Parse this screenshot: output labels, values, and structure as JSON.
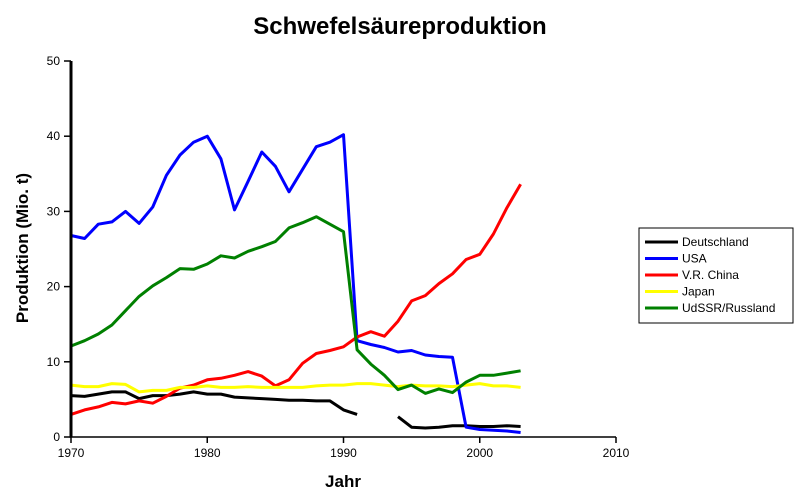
{
  "chart_data": {
    "type": "line",
    "title": "Schwefelsäureproduktion",
    "xlabel": "Jahr",
    "ylabel": "Produktion (Mio. t)",
    "xlim": [
      1970,
      2010
    ],
    "ylim": [
      0,
      50
    ],
    "xticks": [
      1970,
      1980,
      1990,
      2000,
      2010
    ],
    "yticks": [
      0,
      10,
      20,
      30,
      40,
      50
    ],
    "grid": false,
    "legend_position": "right",
    "series": [
      {
        "name": "Deutschland",
        "color": "#000000",
        "points": [
          [
            1970,
            5.5
          ],
          [
            1971,
            5.4
          ],
          [
            1972,
            5.7
          ],
          [
            1973,
            6.0
          ],
          [
            1974,
            6.0
          ],
          [
            1975,
            5.1
          ],
          [
            1976,
            5.5
          ],
          [
            1977,
            5.5
          ],
          [
            1978,
            5.7
          ],
          [
            1979,
            6.0
          ],
          [
            1980,
            5.7
          ],
          [
            1981,
            5.7
          ],
          [
            1982,
            5.3
          ],
          [
            1983,
            5.2
          ],
          [
            1984,
            5.1
          ],
          [
            1985,
            5.0
          ],
          [
            1986,
            4.9
          ],
          [
            1987,
            4.9
          ],
          [
            1988,
            4.8
          ],
          [
            1989,
            4.8
          ],
          [
            1990,
            3.6
          ],
          [
            1991,
            3.0
          ],
          [
            1994,
            2.7
          ],
          [
            1995,
            1.3
          ],
          [
            1996,
            1.2
          ],
          [
            1997,
            1.3
          ],
          [
            1998,
            1.5
          ],
          [
            1999,
            1.5
          ],
          [
            2000,
            1.4
          ],
          [
            2001,
            1.4
          ],
          [
            2002,
            1.5
          ],
          [
            2003,
            1.4
          ]
        ]
      },
      {
        "name": "USA",
        "color": "#0000ff",
        "points": [
          [
            1970,
            26.8
          ],
          [
            1971,
            26.4
          ],
          [
            1972,
            28.3
          ],
          [
            1973,
            28.6
          ],
          [
            1974,
            30.0
          ],
          [
            1975,
            28.4
          ],
          [
            1976,
            30.6
          ],
          [
            1977,
            34.8
          ],
          [
            1978,
            37.5
          ],
          [
            1979,
            39.2
          ],
          [
            1980,
            40.0
          ],
          [
            1981,
            37.0
          ],
          [
            1982,
            30.2
          ],
          [
            1983,
            34.0
          ],
          [
            1984,
            37.9
          ],
          [
            1985,
            36.0
          ],
          [
            1986,
            32.6
          ],
          [
            1987,
            35.6
          ],
          [
            1988,
            38.6
          ],
          [
            1989,
            39.2
          ],
          [
            1990,
            40.2
          ],
          [
            1991,
            12.8
          ],
          [
            1992,
            12.3
          ],
          [
            1993,
            11.9
          ],
          [
            1994,
            11.3
          ],
          [
            1995,
            11.5
          ],
          [
            1996,
            10.9
          ],
          [
            1997,
            10.7
          ],
          [
            1998,
            10.6
          ],
          [
            1999,
            1.3
          ],
          [
            2000,
            1.0
          ],
          [
            2001,
            0.9
          ],
          [
            2002,
            0.8
          ],
          [
            2003,
            0.6
          ]
        ]
      },
      {
        "name": "V.R. China",
        "color": "#ff0000",
        "points": [
          [
            1970,
            3.0
          ],
          [
            1971,
            3.6
          ],
          [
            1972,
            4.0
          ],
          [
            1973,
            4.6
          ],
          [
            1974,
            4.4
          ],
          [
            1975,
            4.8
          ],
          [
            1976,
            4.5
          ],
          [
            1977,
            5.4
          ],
          [
            1978,
            6.5
          ],
          [
            1979,
            6.9
          ],
          [
            1980,
            7.6
          ],
          [
            1981,
            7.8
          ],
          [
            1982,
            8.2
          ],
          [
            1983,
            8.7
          ],
          [
            1984,
            8.1
          ],
          [
            1985,
            6.8
          ],
          [
            1986,
            7.6
          ],
          [
            1987,
            9.8
          ],
          [
            1988,
            11.1
          ],
          [
            1989,
            11.5
          ],
          [
            1990,
            12.0
          ],
          [
            1991,
            13.3
          ],
          [
            1992,
            14.0
          ],
          [
            1993,
            13.4
          ],
          [
            1994,
            15.4
          ],
          [
            1995,
            18.1
          ],
          [
            1996,
            18.8
          ],
          [
            1997,
            20.4
          ],
          [
            1998,
            21.7
          ],
          [
            1999,
            23.6
          ],
          [
            2000,
            24.3
          ],
          [
            2001,
            27.0
          ],
          [
            2002,
            30.5
          ],
          [
            2003,
            33.6
          ]
        ]
      },
      {
        "name": "Japan",
        "color": "#ffff00",
        "points": [
          [
            1970,
            6.9
          ],
          [
            1971,
            6.7
          ],
          [
            1972,
            6.7
          ],
          [
            1973,
            7.1
          ],
          [
            1974,
            7.0
          ],
          [
            1975,
            6.0
          ],
          [
            1976,
            6.2
          ],
          [
            1977,
            6.2
          ],
          [
            1978,
            6.6
          ],
          [
            1979,
            6.6
          ],
          [
            1980,
            6.8
          ],
          [
            1981,
            6.6
          ],
          [
            1982,
            6.6
          ],
          [
            1983,
            6.7
          ],
          [
            1984,
            6.6
          ],
          [
            1985,
            6.6
          ],
          [
            1986,
            6.6
          ],
          [
            1987,
            6.6
          ],
          [
            1988,
            6.8
          ],
          [
            1989,
            6.9
          ],
          [
            1990,
            6.9
          ],
          [
            1991,
            7.1
          ],
          [
            1992,
            7.1
          ],
          [
            1993,
            6.9
          ],
          [
            1994,
            6.7
          ],
          [
            1995,
            6.9
          ],
          [
            1996,
            6.8
          ],
          [
            1997,
            6.8
          ],
          [
            1998,
            6.7
          ],
          [
            1999,
            6.9
          ],
          [
            2000,
            7.1
          ],
          [
            2001,
            6.8
          ],
          [
            2002,
            6.8
          ],
          [
            2003,
            6.6
          ]
        ]
      },
      {
        "name": "UdSSR/Russland",
        "color": "#008000",
        "points": [
          [
            1970,
            12.1
          ],
          [
            1971,
            12.8
          ],
          [
            1972,
            13.7
          ],
          [
            1973,
            14.9
          ],
          [
            1974,
            16.8
          ],
          [
            1975,
            18.7
          ],
          [
            1976,
            20.1
          ],
          [
            1977,
            21.2
          ],
          [
            1978,
            22.4
          ],
          [
            1979,
            22.3
          ],
          [
            1980,
            23.0
          ],
          [
            1981,
            24.1
          ],
          [
            1982,
            23.8
          ],
          [
            1983,
            24.7
          ],
          [
            1984,
            25.3
          ],
          [
            1985,
            26.0
          ],
          [
            1986,
            27.8
          ],
          [
            1987,
            28.5
          ],
          [
            1988,
            29.3
          ],
          [
            1989,
            28.3
          ],
          [
            1990,
            27.3
          ],
          [
            1991,
            11.6
          ],
          [
            1992,
            9.7
          ],
          [
            1993,
            8.2
          ],
          [
            1994,
            6.3
          ],
          [
            1995,
            6.9
          ],
          [
            1996,
            5.8
          ],
          [
            1997,
            6.4
          ],
          [
            1998,
            5.9
          ],
          [
            1999,
            7.3
          ],
          [
            2000,
            8.2
          ],
          [
            2001,
            8.2
          ],
          [
            2002,
            8.5
          ],
          [
            2003,
            8.8
          ]
        ]
      }
    ]
  }
}
